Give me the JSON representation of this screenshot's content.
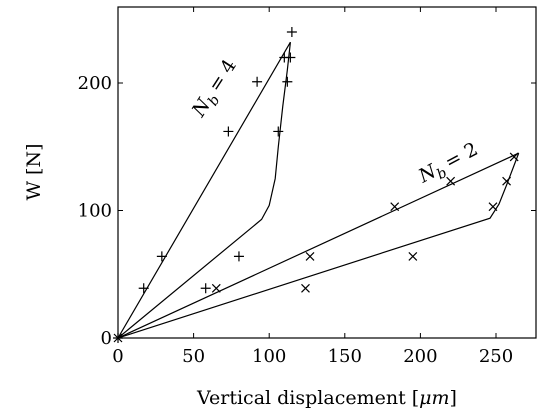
{
  "chart_data": {
    "type": "scatter",
    "xlabel_text": "Vertical displacement [",
    "xlabel_unit": "μm",
    "xlabel_close": "]",
    "ylabel": "W [N]",
    "xlim": [
      0,
      280
    ],
    "ylim": [
      0,
      247
    ],
    "xticks": [
      0,
      50,
      100,
      150,
      200,
      250
    ],
    "yticks": [
      0,
      100,
      200
    ],
    "grid": false,
    "series": [
      {
        "label_text": "= 4",
        "label_sym": "N",
        "label_sub": "b",
        "marker": "plus",
        "points": [
          [
            0,
            0
          ],
          [
            17,
            39
          ],
          [
            29,
            64
          ],
          [
            73,
            162
          ],
          [
            92,
            201
          ],
          [
            106,
            162
          ],
          [
            110,
            220
          ],
          [
            112,
            201
          ],
          [
            114,
            220
          ],
          [
            115,
            240
          ],
          [
            58,
            39
          ],
          [
            80,
            64
          ]
        ],
        "upper_curve": [
          [
            0,
            0
          ],
          [
            114,
            232
          ]
        ],
        "lower_curve": [
          [
            0,
            0
          ],
          [
            95,
            93
          ],
          [
            100,
            104
          ],
          [
            104,
            125
          ],
          [
            106,
            150
          ],
          [
            109,
            182
          ],
          [
            112,
            210
          ],
          [
            114,
            232
          ]
        ]
      },
      {
        "label_text": "= 2",
        "label_sym": "N",
        "label_sub": "b",
        "marker": "cross",
        "points": [
          [
            0,
            0
          ],
          [
            65,
            39
          ],
          [
            127,
            64
          ],
          [
            183,
            103
          ],
          [
            220,
            123
          ],
          [
            262,
            142
          ],
          [
            257,
            123
          ],
          [
            248,
            103
          ],
          [
            195,
            64
          ],
          [
            124,
            39
          ]
        ],
        "upper_curve": [
          [
            0,
            0
          ],
          [
            265,
            145
          ]
        ],
        "lower_curve": [
          [
            0,
            0
          ],
          [
            246,
            94
          ],
          [
            252,
            105
          ],
          [
            257,
            120
          ],
          [
            265,
            145
          ]
        ]
      }
    ]
  }
}
